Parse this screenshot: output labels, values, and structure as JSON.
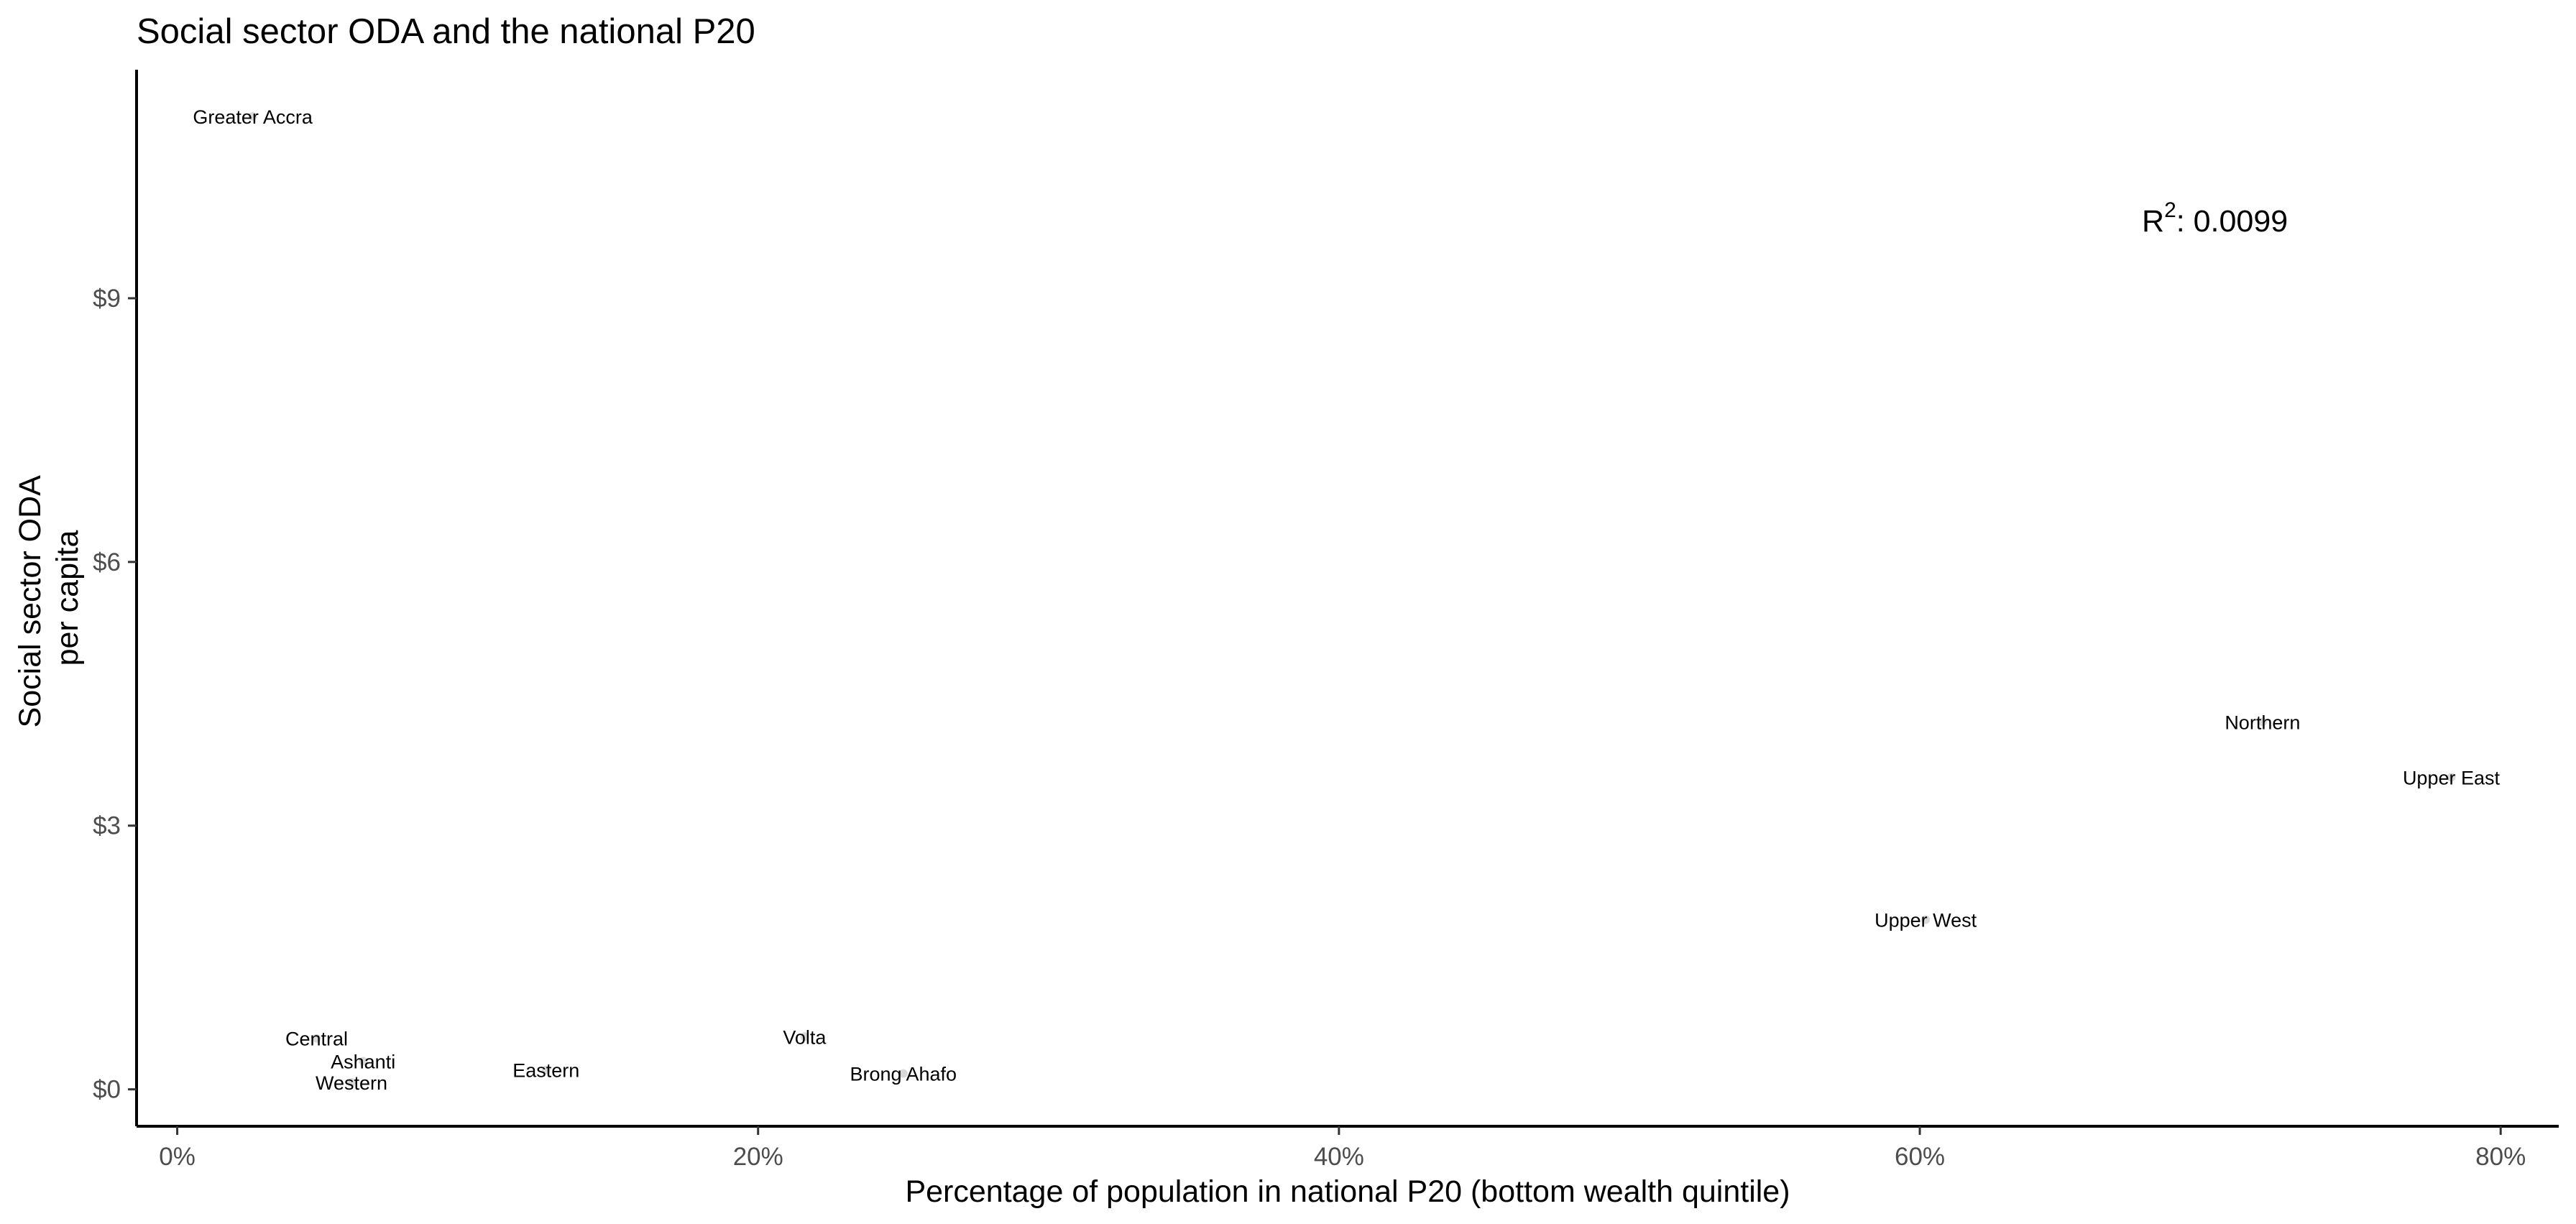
{
  "chart_data": {
    "type": "scatter",
    "title": "Social sector ODA and the national P20",
    "xlabel": "Percentage of population in national P20 (bottom wealth quintile)",
    "ylabel_lines": [
      "Social sector ODA",
      "per capita"
    ],
    "x_ticks": [
      {
        "value": 0,
        "label": "0%"
      },
      {
        "value": 20,
        "label": "20%"
      },
      {
        "value": 40,
        "label": "40%"
      },
      {
        "value": 60,
        "label": "60%"
      },
      {
        "value": 80,
        "label": "80%"
      }
    ],
    "y_ticks": [
      {
        "value": 0,
        "label": "$0"
      },
      {
        "value": 3,
        "label": "$3"
      },
      {
        "value": 6,
        "label": "$6"
      },
      {
        "value": 9,
        "label": "$9"
      }
    ],
    "xlim": [
      -1.4,
      82
    ],
    "ylim": [
      -0.42,
      11.6
    ],
    "grid": false,
    "point_color": "#d9d9d9",
    "points": [
      {
        "label": "Greater Accra",
        "x": 2.6,
        "y": 11.07
      },
      {
        "label": "Central",
        "x": 4.8,
        "y": 0.58
      },
      {
        "label": "Ashanti",
        "x": 6.4,
        "y": 0.32
      },
      {
        "label": "Western",
        "x": 6.0,
        "y": 0.08
      },
      {
        "label": "Eastern",
        "x": 12.7,
        "y": 0.22
      },
      {
        "label": "Volta",
        "x": 21.6,
        "y": 0.6
      },
      {
        "label": "Brong Ahafo",
        "x": 25.0,
        "y": 0.18
      },
      {
        "label": "Upper West",
        "x": 60.2,
        "y": 1.93
      },
      {
        "label": "Northern",
        "x": 71.8,
        "y": 4.18
      },
      {
        "label": "Upper East",
        "x": 78.3,
        "y": 3.55
      }
    ],
    "annotation": {
      "prefix": "R",
      "superscript": "2",
      "text": ": 0.0099"
    }
  }
}
